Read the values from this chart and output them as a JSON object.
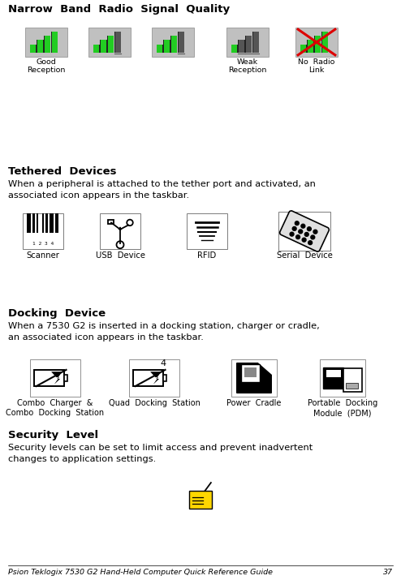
{
  "page_title": "Narrow  Band  Radio  Signal  Quality",
  "sec1_heading": "Tethered  Devices",
  "sec1_body": "When a peripheral is attached to the tether port and activated, an\nassociated icon appears in the taskbar.",
  "sec1_labels": [
    "Scanner",
    "USB  Device",
    "RFID",
    "Serial  Device"
  ],
  "sec2_heading": "Docking  Device",
  "sec2_body": "When a 7530 G2 is inserted in a docking station, charger or cradle,\nan associated icon appears in the taskbar.",
  "sec2_labels": [
    "Combo  Charger  &\nCombo  Docking  Station",
    "Quad  Docking  Station",
    "Power  Cradle",
    "Portable  Docking\nModule  (PDM)"
  ],
  "sec3_heading": "Security  Level",
  "sec3_body": "Security levels can be set to limit access and prevent inadvertent\nchanges to application settings.",
  "footer_text": "Psion Teklogix 7530 G2 Hand-Held Computer Quick Reference Guide",
  "footer_num": "37",
  "bg": "#ffffff",
  "fg": "#000000",
  "green": "#22cc22",
  "red": "#dd0000",
  "yellow": "#FFD700"
}
